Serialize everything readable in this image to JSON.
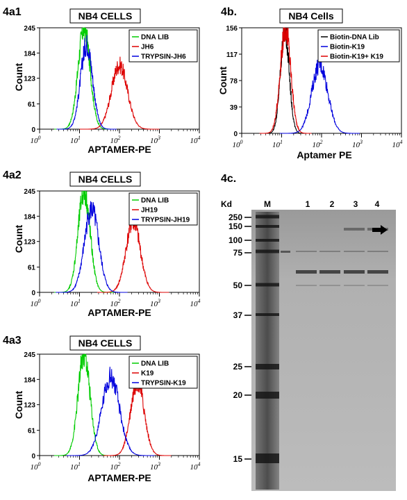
{
  "panels": [
    {
      "label": "4a1",
      "title": "NB4 CELLS",
      "xlabel": "APTAMER-PE",
      "ylabel": "Count",
      "yticks": [
        "0",
        "61",
        "123",
        "184",
        "245"
      ],
      "xticks": [
        "10",
        "10",
        "10",
        "10",
        "10"
      ],
      "xexps": [
        "0",
        "1",
        "2",
        "3",
        "4"
      ],
      "legend": [
        "DNA LIB",
        "JH6",
        "TRYPSIN-JH6"
      ]
    },
    {
      "label": "4b.",
      "title": "NB4  Cells",
      "xlabel": "Aptamer PE",
      "ylabel": "Count",
      "yticks": [
        "0",
        "39",
        "78",
        "117",
        "156"
      ],
      "xticks": [
        "10",
        "10",
        "10",
        "10",
        "10"
      ],
      "xexps": [
        "0",
        "1",
        "2",
        "3",
        "4"
      ],
      "legend": [
        "Biotin-DNA Lib",
        "Biotin-K19",
        "Biotin-K19+ K19"
      ]
    },
    {
      "label": "4a2",
      "title": "NB4 CELLS",
      "xlabel": "APTAMER-PE",
      "ylabel": "Count",
      "yticks": [
        "0",
        "61",
        "123",
        "184",
        "245"
      ],
      "xticks": [
        "10",
        "10",
        "10",
        "10",
        "10"
      ],
      "xexps": [
        "0",
        "1",
        "2",
        "3",
        "4"
      ],
      "legend": [
        "DNA LIB",
        "JH19",
        "TRYPSIN-JH19"
      ]
    },
    {
      "label": "4a3",
      "title": "NB4 CELLS",
      "xlabel": "APTAMER-PE",
      "ylabel": "Count",
      "yticks": [
        "0",
        "61",
        "123",
        "184",
        "245"
      ],
      "xticks": [
        "10",
        "10",
        "10",
        "10",
        "10"
      ],
      "xexps": [
        "0",
        "1",
        "2",
        "3",
        "4"
      ],
      "legend": [
        "DNA LIB",
        "K19",
        "TRYPSIN-K19"
      ]
    }
  ],
  "gel": {
    "label": "4c.",
    "kd_label": "Kd",
    "lanes": [
      "M",
      "1",
      "2",
      "3",
      "4"
    ],
    "markers": [
      "250",
      "150",
      "100",
      "75",
      "50",
      "37",
      "25",
      "20",
      "15"
    ]
  },
  "chart_data": [
    {
      "type": "line",
      "scale": "log-x",
      "xlabel": "APTAMER-PE",
      "ylabel": "Count",
      "xlim": [
        1,
        10000
      ],
      "ylim": [
        0,
        245
      ],
      "series": [
        {
          "name": "DNA LIB",
          "color": "#00cc00",
          "peak_x": 13,
          "peak_y": 245,
          "width": 0.15
        },
        {
          "name": "JH6",
          "color": "#dd0000",
          "peak_x": 100,
          "peak_y": 155,
          "width": 0.2
        },
        {
          "name": "TRYPSIN-JH6",
          "color": "#0000dd",
          "peak_x": 15,
          "peak_y": 205,
          "width": 0.15
        }
      ]
    },
    {
      "type": "line",
      "scale": "log-x",
      "xlabel": "Aptamer PE",
      "ylabel": "Count",
      "xlim": [
        1,
        10000
      ],
      "ylim": [
        0,
        156
      ],
      "series": [
        {
          "name": "Biotin-DNA Lib",
          "color": "#000000",
          "peak_x": 12,
          "peak_y": 152,
          "width": 0.11
        },
        {
          "name": "Biotin-K19",
          "color": "#0000dd",
          "peak_x": 90,
          "peak_y": 102,
          "width": 0.2
        },
        {
          "name": "Biotin-K19+ K19",
          "color": "#dd0000",
          "peak_x": 12.5,
          "peak_y": 156,
          "width": 0.13
        }
      ]
    },
    {
      "type": "line",
      "scale": "log-x",
      "xlabel": "APTAMER-PE",
      "ylabel": "Count",
      "xlim": [
        1,
        10000
      ],
      "ylim": [
        0,
        245
      ],
      "series": [
        {
          "name": "DNA LIB",
          "color": "#00cc00",
          "peak_x": 13,
          "peak_y": 245,
          "width": 0.15
        },
        {
          "name": "JH19",
          "color": "#dd0000",
          "peak_x": 220,
          "peak_y": 170,
          "width": 0.18
        },
        {
          "name": "TRYPSIN-JH19",
          "color": "#0000dd",
          "peak_x": 20,
          "peak_y": 200,
          "width": 0.18
        }
      ]
    },
    {
      "type": "line",
      "scale": "log-x",
      "xlabel": "APTAMER-PE",
      "ylabel": "Count",
      "xlim": [
        1,
        10000
      ],
      "ylim": [
        0,
        245
      ],
      "series": [
        {
          "name": "DNA LIB",
          "color": "#00cc00",
          "peak_x": 13,
          "peak_y": 245,
          "width": 0.15
        },
        {
          "name": "K19",
          "color": "#dd0000",
          "peak_x": 280,
          "peak_y": 180,
          "width": 0.17
        },
        {
          "name": "TRYPSIN-K19",
          "color": "#0000dd",
          "peak_x": 60,
          "peak_y": 190,
          "width": 0.22
        }
      ]
    }
  ]
}
